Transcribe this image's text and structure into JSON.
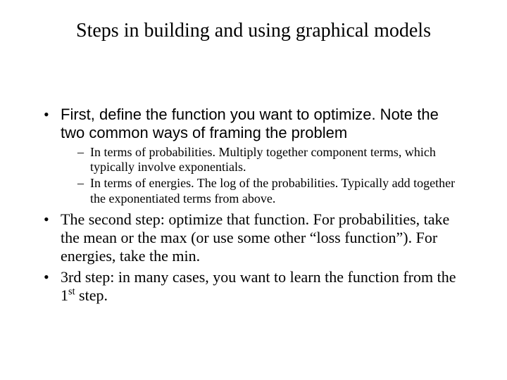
{
  "title": "Steps in building and using graphical models",
  "bullets": {
    "b1": "First, define the function you want to optimize.  Note the two common ways of framing the problem",
    "b1_sub1": "In terms of probabilities.  Multiply together component  terms, which typically involve exponentials.",
    "b1_sub2": "In terms of energies.  The log of the probabilities.  Typically add together the exponentiated terms from above.",
    "b2": "The second step:  optimize that function.  For probabilities, take the mean or the max (or use some other “loss function”).  For energies, take the min.",
    "b3_pre": "3rd step:  in many cases, you want to learn the function from the 1",
    "b3_sup": "st",
    "b3_post": " step."
  },
  "style": {
    "background_color": "#ffffff",
    "text_color": "#000000",
    "title_fontsize": 28,
    "body_fontsize": 22,
    "sub_fontsize": 18,
    "font_family_title": "Times New Roman",
    "font_family_body": "Times New Roman / Arial mix"
  }
}
